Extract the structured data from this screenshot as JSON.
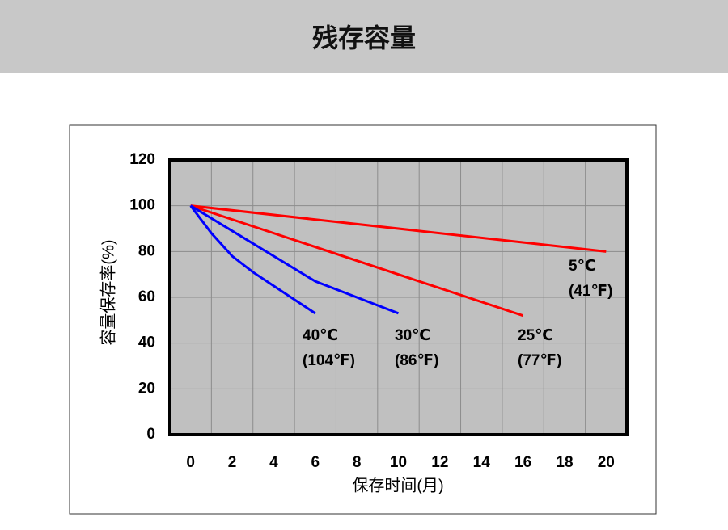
{
  "header": {
    "title": "残存容量"
  },
  "chart_data": {
    "type": "line",
    "ylabel": "容量保存率(%)",
    "xlabel": "保存时间(月)",
    "xlim": [
      -1,
      21
    ],
    "xticks": [
      0,
      2,
      4,
      6,
      8,
      10,
      12,
      14,
      16,
      18,
      20
    ],
    "x_gridlines": [
      1,
      3,
      5,
      7,
      9,
      11,
      13,
      15,
      17,
      19
    ],
    "ylim": [
      0,
      120
    ],
    "yticks": [
      0,
      20,
      40,
      60,
      80,
      100,
      120
    ],
    "grid": true,
    "series": [
      {
        "name": "5℃",
        "fahrenheit": "(41℉)",
        "color": "#ff0000",
        "x": [
          0,
          20
        ],
        "values": [
          100,
          80
        ]
      },
      {
        "name": "25℃",
        "fahrenheit": "(77℉)",
        "color": "#ff0000",
        "x": [
          0,
          16
        ],
        "values": [
          100,
          52
        ]
      },
      {
        "name": "30℃",
        "fahrenheit": "(86℉)",
        "color": "#0000ff",
        "x": [
          0,
          2,
          4,
          6,
          8,
          10
        ],
        "values": [
          100,
          89,
          78,
          67,
          60,
          53
        ]
      },
      {
        "name": "40℃",
        "fahrenheit": "(104℉)",
        "color": "#0000ff",
        "x": [
          0,
          1,
          2,
          3,
          4,
          5,
          6
        ],
        "values": [
          100,
          88,
          78,
          71,
          65,
          59,
          53
        ]
      }
    ]
  }
}
